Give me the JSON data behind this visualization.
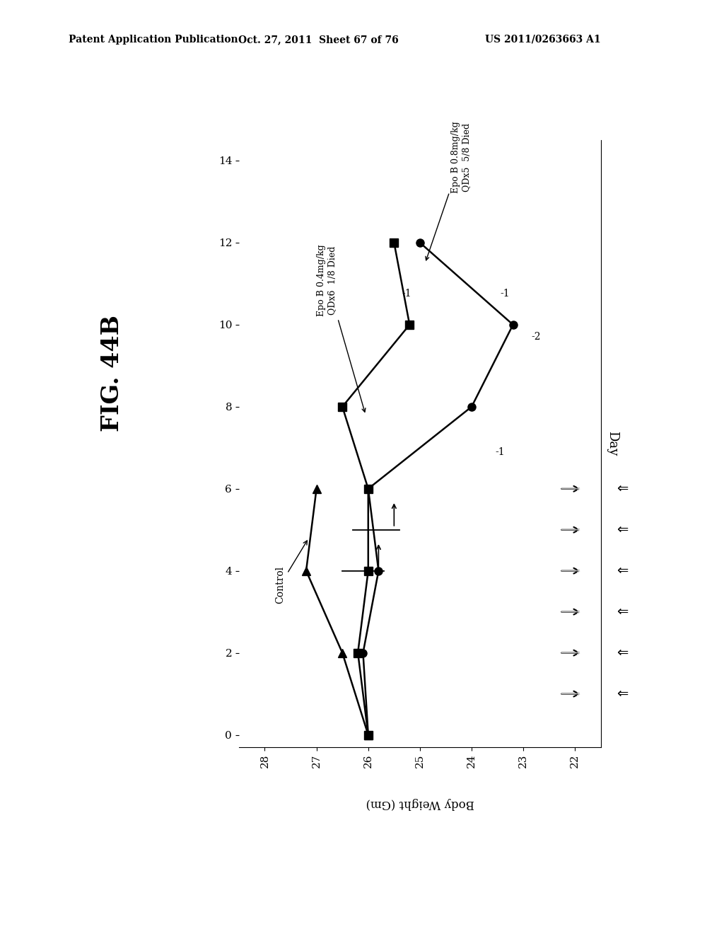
{
  "header_left": "Patent Application Publication",
  "header_center": "Oct. 27, 2011  Sheet 67 of 76",
  "header_right": "US 2011/0263663 A1",
  "fig_label": "FIG. 44B",
  "control_weights": [
    26.0,
    26.5,
    27.2,
    27.0
  ],
  "control_days": [
    0,
    2,
    4,
    6
  ],
  "epo04_weights": [
    26.0,
    26.2,
    26.0,
    26.0,
    26.5,
    25.2,
    25.5
  ],
  "epo04_days": [
    0,
    2,
    4,
    6,
    8,
    10,
    12
  ],
  "epo08_weights": [
    26.0,
    26.1,
    25.8,
    26.0,
    24.0,
    23.2,
    25.0
  ],
  "epo08_days": [
    0,
    2,
    4,
    6,
    8,
    10,
    12
  ],
  "dosing_days": [
    1,
    2,
    3,
    4,
    5,
    6
  ],
  "xlabel": "Body Weight (Gm)",
  "ylabel": "Day",
  "xticks": [
    22,
    23,
    24,
    25,
    26,
    27,
    28
  ],
  "yticks": [
    0,
    2,
    4,
    6,
    8,
    10,
    12,
    14
  ],
  "xlim": [
    22,
    28
  ],
  "ylim": [
    0,
    14
  ]
}
